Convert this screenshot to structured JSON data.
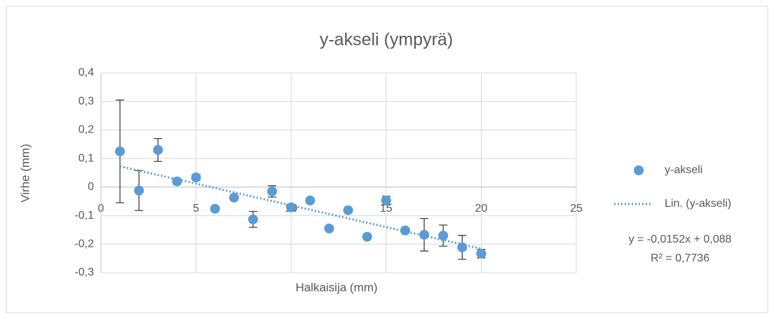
{
  "chart_data": {
    "type": "scatter",
    "title": "y-akseli (ympyrä)",
    "x_label": "Halkaisija (mm)",
    "y_label": "Virhe (mm)",
    "xlim": [
      0,
      25
    ],
    "xticks": [
      0,
      5,
      10,
      15,
      20,
      25
    ],
    "ylim": [
      -0.3,
      0.4
    ],
    "yticks": [
      {
        "value": -0.3,
        "label": "-0,3"
      },
      {
        "value": -0.2,
        "label": "-0,2"
      },
      {
        "value": -0.1,
        "label": "-0,1"
      },
      0,
      {
        "value": 0.1,
        "label": "0,1"
      },
      {
        "value": 0.2,
        "label": "0,2"
      },
      {
        "value": 0.3,
        "label": "0,3"
      },
      {
        "value": 0.4,
        "label": "0,4"
      }
    ],
    "grid": true,
    "series": [
      {
        "name": "y-akseli",
        "color": "#5b9bd5",
        "x": [
          1,
          2,
          3,
          4,
          5,
          6,
          7,
          8,
          9,
          10,
          11,
          12,
          13,
          14,
          15,
          16,
          17,
          18,
          19,
          20
        ],
        "values": [
          0.125,
          -0.012,
          0.13,
          0.02,
          0.034,
          -0.076,
          -0.037,
          -0.113,
          -0.015,
          -0.071,
          -0.047,
          -0.145,
          -0.081,
          -0.174,
          -0.047,
          -0.152,
          -0.167,
          -0.17,
          -0.211,
          -0.233
        ],
        "errors": [
          0.18,
          0.07,
          0.04,
          0.01,
          0.01,
          0.005,
          0.005,
          0.028,
          0.02,
          0.01,
          0.005,
          0,
          0.005,
          0,
          0.015,
          0.005,
          0.057,
          0.037,
          0.042,
          0.015
        ]
      }
    ],
    "trendline": {
      "name": "Lin. (y-akseli)",
      "color": "#5b9bd5",
      "slope": -0.0152,
      "intercept": 0.088,
      "equation": "y = -0,0152x + 0,088",
      "r_squared": "R² = 0,7736"
    }
  }
}
